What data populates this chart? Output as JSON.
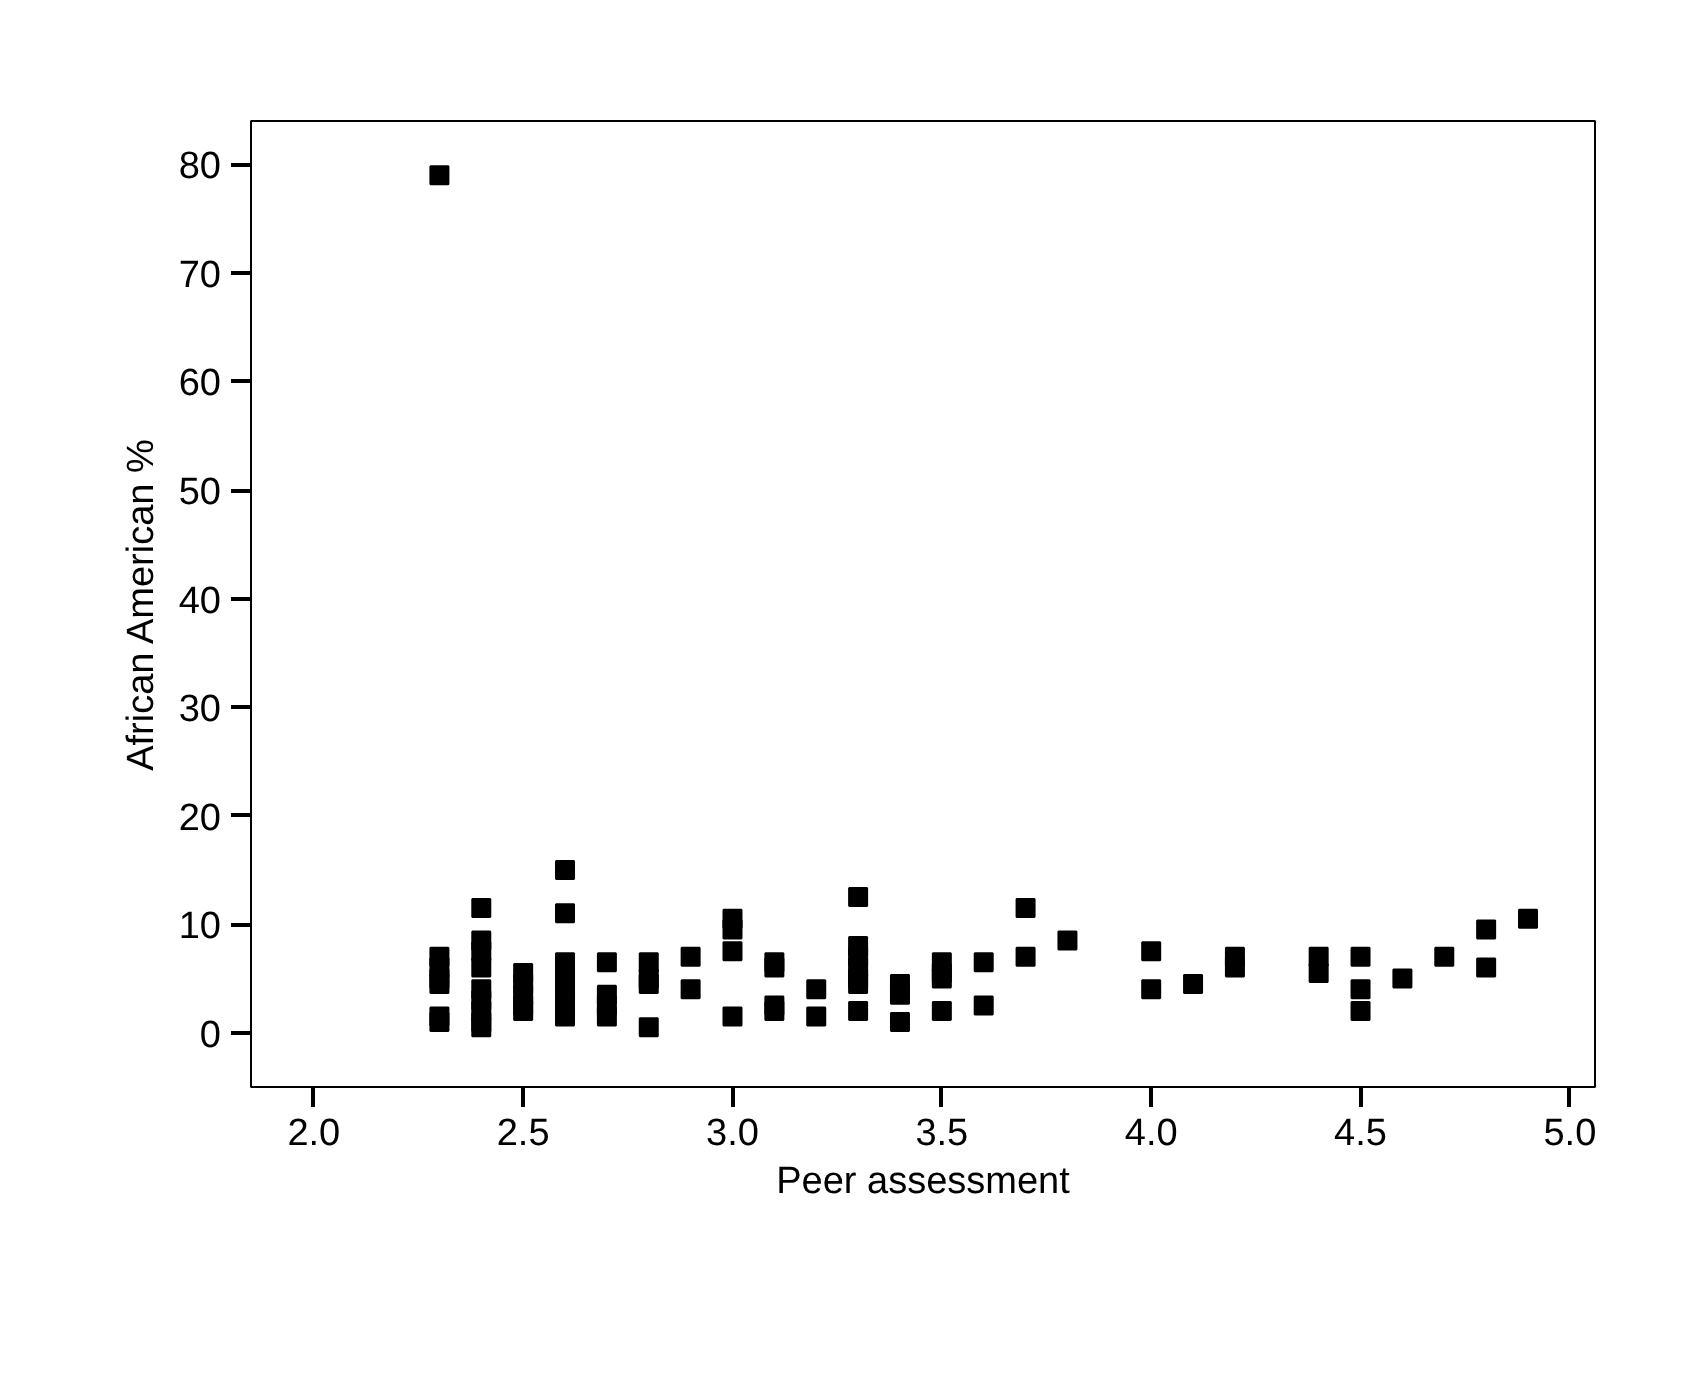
{
  "chart_data": {
    "type": "scatter",
    "xlabel": "Peer assessment",
    "ylabel": "African American %",
    "marker": "square",
    "grid": false,
    "xlim": [
      1.85,
      5.06
    ],
    "ylim": [
      -5,
      84
    ],
    "xticks": [
      {
        "value": 2.0,
        "label": "2.0"
      },
      {
        "value": 2.5,
        "label": "2.5"
      },
      {
        "value": 3.0,
        "label": "3.0"
      },
      {
        "value": 3.5,
        "label": "3.5"
      },
      {
        "value": 4.0,
        "label": "4.0"
      },
      {
        "value": 4.5,
        "label": "4.5"
      },
      {
        "value": 5.0,
        "label": "5.0"
      }
    ],
    "yticks": [
      0,
      10,
      20,
      30,
      40,
      50,
      60,
      70,
      80
    ],
    "series": [
      {
        "color": "#000000",
        "x": [
          2.3,
          2.3,
          2.3,
          2.3,
          2.3,
          2.3,
          2.3,
          2.4,
          2.4,
          2.4,
          2.4,
          2.4,
          2.4,
          2.4,
          2.4,
          2.4,
          2.5,
          2.5,
          2.5,
          2.5,
          2.5,
          2.6,
          2.6,
          2.6,
          2.6,
          2.6,
          2.6,
          2.6,
          2.7,
          2.7,
          2.7,
          2.7,
          2.8,
          2.8,
          2.8,
          2.8,
          2.9,
          2.9,
          3.0,
          3.0,
          3.0,
          3.0,
          3.1,
          3.1,
          3.1,
          3.1,
          3.2,
          3.2,
          3.3,
          3.3,
          3.3,
          3.3,
          3.3,
          3.3,
          3.3,
          3.4,
          3.4,
          3.4,
          3.5,
          3.5,
          3.5,
          3.5,
          3.6,
          3.6,
          3.7,
          3.7,
          3.8,
          4.0,
          4.0,
          4.1,
          4.2,
          4.2,
          4.4,
          4.4,
          4.5,
          4.5,
          4.5,
          4.6,
          4.7,
          4.8,
          4.8,
          4.9
        ],
        "values": [
          79,
          7,
          6,
          5,
          4.5,
          1.5,
          1,
          11.5,
          8.5,
          7.5,
          6,
          4,
          3,
          2,
          1,
          0.5,
          5.5,
          4.5,
          3.5,
          2.5,
          2,
          15,
          11,
          6.5,
          5,
          4,
          3,
          1.5,
          6.5,
          3.5,
          2.5,
          1.5,
          6.5,
          5,
          4.5,
          0.5,
          7,
          4,
          10.5,
          9.5,
          7.5,
          1.5,
          6.5,
          6,
          2.5,
          2,
          4,
          1.5,
          12.5,
          8,
          7,
          6,
          5,
          4.5,
          2,
          4.5,
          3.5,
          1,
          6.5,
          5.5,
          5,
          2,
          6.5,
          2.5,
          11.5,
          7,
          8.5,
          7.5,
          4,
          4.5,
          7,
          6,
          7,
          5.5,
          7,
          4,
          2,
          5,
          7,
          9.5,
          6,
          10.5
        ]
      }
    ]
  }
}
